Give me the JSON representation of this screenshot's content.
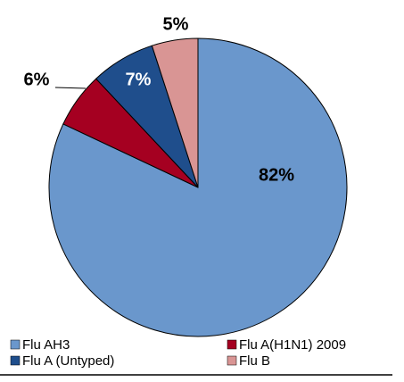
{
  "chart_data": {
    "type": "pie",
    "categories": [
      "Flu AH3",
      "Flu A(H1N1) 2009",
      "Flu A (Untyped)",
      "Flu B"
    ],
    "values": [
      82,
      6,
      7,
      5
    ],
    "value_labels": [
      "82%",
      "6%",
      "7%",
      "5%"
    ],
    "colors": [
      "#6a97cc",
      "#a50021",
      "#1f4e8c",
      "#d99594"
    ]
  }
}
